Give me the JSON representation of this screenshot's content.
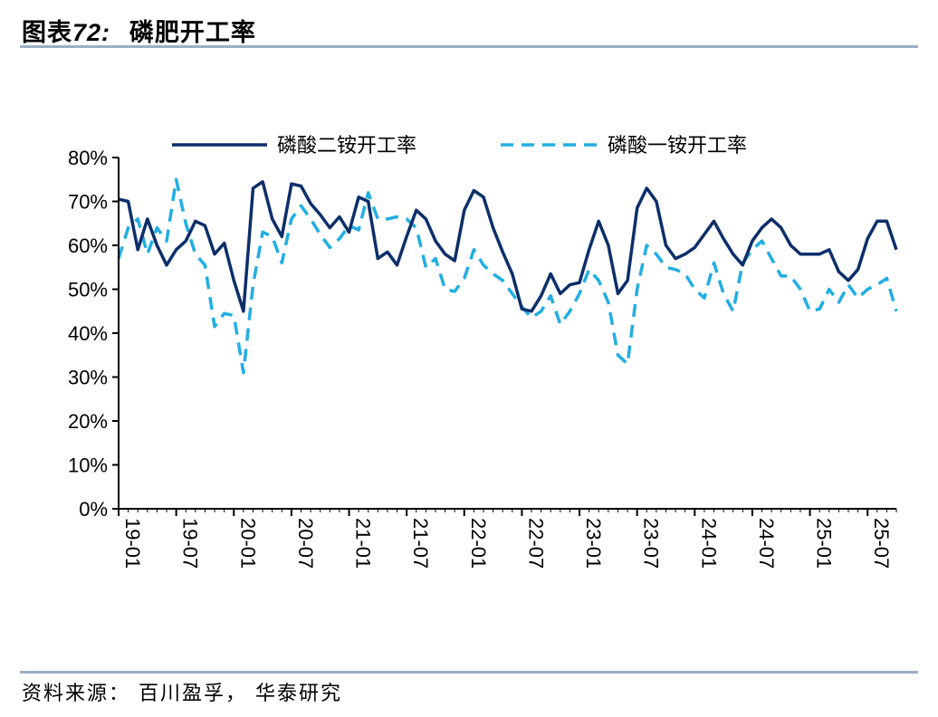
{
  "figure": {
    "title_prefix": "图表",
    "title_number": "72:",
    "title_text": "磷肥开工率",
    "source": "资料来源： 百川盈孚， 华泰研究"
  },
  "colors": {
    "dap": "#0c2f6a",
    "map": "#21aee2",
    "rule": "#9aaec6"
  },
  "chart_data": {
    "type": "line",
    "title": "",
    "xlabel": "",
    "ylabel": "",
    "ylim": [
      0,
      80
    ],
    "y_unit": "%",
    "yticks": [
      "0%",
      "10%",
      "20%",
      "30%",
      "40%",
      "50%",
      "60%",
      "70%",
      "80%"
    ],
    "xticks": [
      "19-01",
      "19-07",
      "20-01",
      "20-07",
      "21-01",
      "21-07",
      "22-01",
      "22-07",
      "23-01",
      "23-07",
      "24-01",
      "24-07",
      "25-01",
      "25-07"
    ],
    "x": [
      "19-01",
      "19-02",
      "19-03",
      "19-04",
      "19-05",
      "19-06",
      "19-07",
      "19-08",
      "19-09",
      "19-10",
      "19-11",
      "19-12",
      "20-01",
      "20-02",
      "20-03",
      "20-04",
      "20-05",
      "20-06",
      "20-07",
      "20-08",
      "20-09",
      "20-10",
      "20-11",
      "20-12",
      "21-01",
      "21-02",
      "21-03",
      "21-04",
      "21-05",
      "21-06",
      "21-07",
      "21-08",
      "21-09",
      "21-10",
      "21-11",
      "21-12",
      "22-01",
      "22-02",
      "22-03",
      "22-04",
      "22-05",
      "22-06",
      "22-07",
      "22-08",
      "22-09",
      "22-10",
      "22-11",
      "22-12",
      "23-01",
      "23-02",
      "23-03",
      "23-04",
      "23-05",
      "23-06",
      "23-07",
      "23-08",
      "23-09",
      "23-10",
      "23-11",
      "23-12",
      "24-01",
      "24-02",
      "24-03",
      "24-04",
      "24-05",
      "24-06",
      "24-07",
      "24-08",
      "24-09",
      "24-10",
      "24-11",
      "24-12",
      "25-01",
      "25-02",
      "25-03",
      "25-04",
      "25-05",
      "25-06",
      "25-07",
      "25-08",
      "25-09",
      "25-10"
    ],
    "legend_position": "top",
    "grid": false,
    "series": [
      {
        "name": "磷酸二铵开工率",
        "style": "solid",
        "values": [
          70.5,
          70,
          59,
          66,
          60,
          55.5,
          59,
          61,
          65.5,
          64.5,
          58,
          60.5,
          52,
          45,
          73,
          74.5,
          66,
          62,
          74,
          73.5,
          69.5,
          67,
          64,
          66.5,
          63,
          71,
          70,
          57,
          58.5,
          55.5,
          62,
          68,
          66,
          61,
          58,
          56.5,
          68,
          72.5,
          71,
          64,
          58.5,
          53.5,
          45.5,
          45,
          48.5,
          53.5,
          49,
          51,
          51.5,
          59,
          65.5,
          60,
          49,
          52,
          68.5,
          73,
          70,
          60,
          57,
          58,
          59.5,
          62.5,
          65.5,
          61.5,
          58,
          55.5,
          61,
          64,
          66,
          64,
          60,
          58,
          58,
          58,
          59,
          54,
          52,
          54.5,
          61.5,
          65.5,
          65.5,
          59
        ]
      },
      {
        "name": "磷酸一铵开工率",
        "style": "dashed",
        "values": [
          57,
          64,
          66,
          58,
          64,
          61,
          75,
          65,
          58,
          55.5,
          41.5,
          44.5,
          44,
          31,
          51,
          63,
          62,
          56,
          66,
          69,
          66,
          62.5,
          59.5,
          61.5,
          64.5,
          63.5,
          72,
          66,
          66,
          66.5,
          66,
          64,
          55,
          57,
          50,
          49.5,
          52.5,
          59,
          55.5,
          53.5,
          52,
          49,
          46,
          43.5,
          45,
          48.5,
          42,
          45,
          49,
          54.5,
          52,
          47,
          35,
          33,
          50,
          60,
          58,
          55,
          54.5,
          53.5,
          50,
          48,
          56,
          49,
          45,
          56,
          59,
          61,
          57,
          53,
          53,
          50,
          45,
          45.5,
          50,
          47,
          51,
          48,
          50,
          51,
          52.5,
          45
        ]
      }
    ]
  }
}
